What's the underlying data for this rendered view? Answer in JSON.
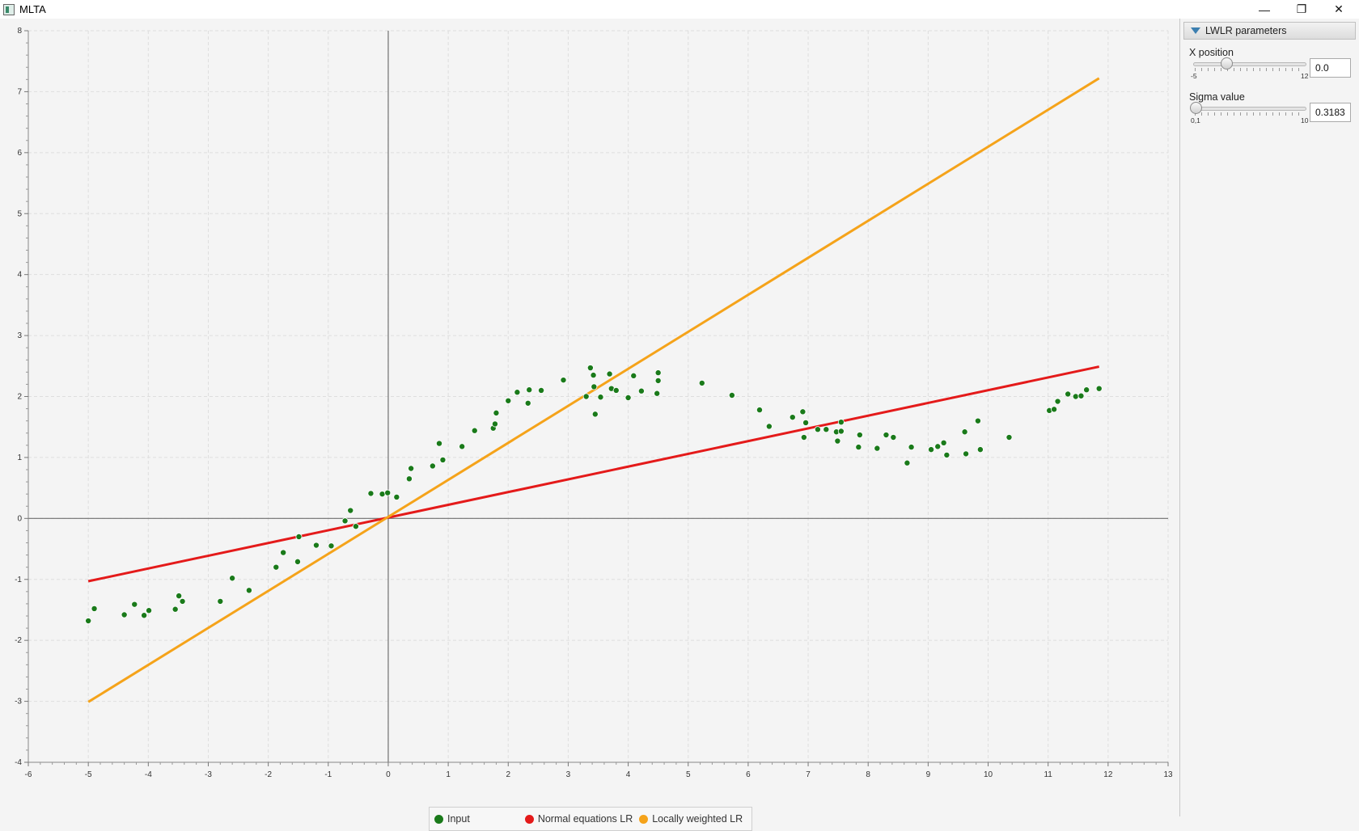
{
  "window": {
    "title": "MLTA"
  },
  "panel": {
    "title": "LWLR parameters",
    "x_position": {
      "label": "X position",
      "min_label": "-5",
      "max_label": "12",
      "min": -5,
      "max": 12,
      "value": "0.0"
    },
    "sigma": {
      "label": "Sigma value",
      "min_label": "0,1",
      "max_label": "10",
      "min": 0.1,
      "max": 10,
      "value": "0.3183"
    }
  },
  "legend": [
    {
      "label": "Input",
      "color": "#1a7a1a"
    },
    {
      "label": "Normal equations LR",
      "color": "#e41a1a"
    },
    {
      "label": "Locally weighted LR",
      "color": "#f5a31a"
    }
  ],
  "chart_data": {
    "type": "scatter",
    "xlim": [
      -6,
      13
    ],
    "ylim": [
      -4,
      8
    ],
    "x_ticks": [
      "-6",
      "-5",
      "-4",
      "-3",
      "-2",
      "-1",
      "0",
      "1",
      "2",
      "3",
      "4",
      "5",
      "6",
      "7",
      "8",
      "9",
      "10",
      "11",
      "12",
      "13"
    ],
    "y_ticks": [
      "-4",
      "-3",
      "-2",
      "-1",
      "0",
      "1",
      "2",
      "3",
      "4",
      "5",
      "6",
      "7",
      "8"
    ],
    "grid": true,
    "legend_position": "bottom",
    "series": [
      {
        "name": "Input",
        "kind": "scatter",
        "color": "#1a7a1a",
        "points": [
          [
            -5.0,
            -1.68
          ],
          [
            -4.9,
            -1.48
          ],
          [
            -4.4,
            -1.58
          ],
          [
            -4.23,
            -1.41
          ],
          [
            -4.07,
            -1.59
          ],
          [
            -3.99,
            -1.51
          ],
          [
            -3.55,
            -1.49
          ],
          [
            -3.49,
            -1.27
          ],
          [
            -3.43,
            -1.36
          ],
          [
            -2.8,
            -1.36
          ],
          [
            -2.6,
            -0.98
          ],
          [
            -2.32,
            -1.18
          ],
          [
            -1.87,
            -0.8
          ],
          [
            -1.75,
            -0.56
          ],
          [
            -1.51,
            -0.71
          ],
          [
            -1.49,
            -0.3
          ],
          [
            -1.2,
            -0.44
          ],
          [
            -0.95,
            -0.45
          ],
          [
            -0.72,
            -0.04
          ],
          [
            -0.63,
            0.13
          ],
          [
            -0.54,
            -0.13
          ],
          [
            -0.29,
            0.41
          ],
          [
            -0.1,
            0.4
          ],
          [
            -0.01,
            0.42
          ],
          [
            0.14,
            0.35
          ],
          [
            0.35,
            0.65
          ],
          [
            0.38,
            0.82
          ],
          [
            0.74,
            0.86
          ],
          [
            0.85,
            1.23
          ],
          [
            0.91,
            0.96
          ],
          [
            1.23,
            1.18
          ],
          [
            1.44,
            1.44
          ],
          [
            1.75,
            1.48
          ],
          [
            1.78,
            1.55
          ],
          [
            1.8,
            1.73
          ],
          [
            2.0,
            1.93
          ],
          [
            2.15,
            2.07
          ],
          [
            2.33,
            1.89
          ],
          [
            2.35,
            2.11
          ],
          [
            2.55,
            2.1
          ],
          [
            2.92,
            2.27
          ],
          [
            3.3,
            2.0
          ],
          [
            3.37,
            2.47
          ],
          [
            3.42,
            2.35
          ],
          [
            3.43,
            2.16
          ],
          [
            3.45,
            1.71
          ],
          [
            3.54,
            1.99
          ],
          [
            3.69,
            2.37
          ],
          [
            3.72,
            2.13
          ],
          [
            3.8,
            2.1
          ],
          [
            4.0,
            1.98
          ],
          [
            4.09,
            2.34
          ],
          [
            4.22,
            2.09
          ],
          [
            4.48,
            2.05
          ],
          [
            4.5,
            2.26
          ],
          [
            4.5,
            2.39
          ],
          [
            5.23,
            2.22
          ],
          [
            5.73,
            2.02
          ],
          [
            6.19,
            1.78
          ],
          [
            6.35,
            1.51
          ],
          [
            6.74,
            1.66
          ],
          [
            6.91,
            1.75
          ],
          [
            6.93,
            1.33
          ],
          [
            6.96,
            1.57
          ],
          [
            7.16,
            1.46
          ],
          [
            7.3,
            1.46
          ],
          [
            7.47,
            1.42
          ],
          [
            7.49,
            1.27
          ],
          [
            7.55,
            1.58
          ],
          [
            7.55,
            1.43
          ],
          [
            7.84,
            1.17
          ],
          [
            7.86,
            1.37
          ],
          [
            8.15,
            1.15
          ],
          [
            8.3,
            1.37
          ],
          [
            8.42,
            1.33
          ],
          [
            8.65,
            0.91
          ],
          [
            8.72,
            1.17
          ],
          [
            9.05,
            1.13
          ],
          [
            9.16,
            1.18
          ],
          [
            9.26,
            1.24
          ],
          [
            9.31,
            1.04
          ],
          [
            9.61,
            1.42
          ],
          [
            9.63,
            1.06
          ],
          [
            9.83,
            1.6
          ],
          [
            9.87,
            1.13
          ],
          [
            10.35,
            1.33
          ],
          [
            11.02,
            1.77
          ],
          [
            11.1,
            1.79
          ],
          [
            11.16,
            1.92
          ],
          [
            11.33,
            2.04
          ],
          [
            11.46,
            2.0
          ],
          [
            11.55,
            2.01
          ],
          [
            11.64,
            2.11
          ],
          [
            11.85,
            2.13
          ]
        ]
      },
      {
        "name": "Normal equations LR",
        "kind": "line",
        "color": "#e41a1a",
        "points": [
          [
            -5.0,
            -1.03
          ],
          [
            11.85,
            2.49
          ]
        ]
      },
      {
        "name": "Locally weighted LR",
        "kind": "line",
        "color": "#f5a31a",
        "points": [
          [
            -5.0,
            -3.01
          ],
          [
            11.85,
            7.22
          ]
        ]
      }
    ]
  }
}
